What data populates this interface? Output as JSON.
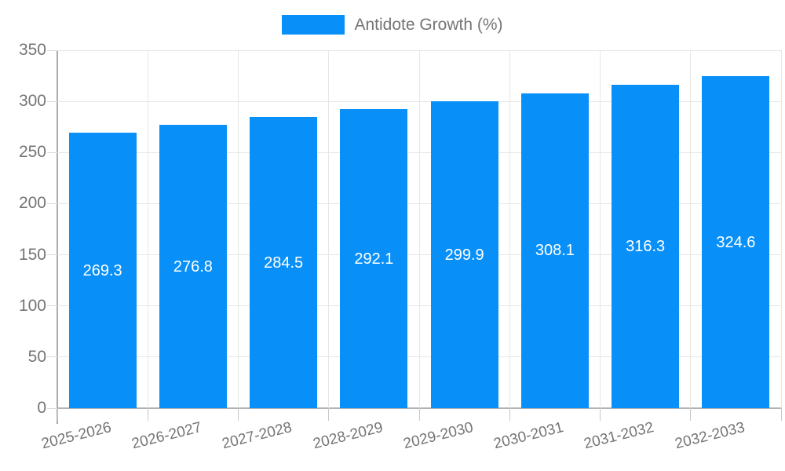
{
  "chart_data": {
    "type": "bar",
    "title": "",
    "legend": "Antidote Growth (%)",
    "legend_position": "top-center",
    "categories": [
      "2025-2026",
      "2026-2027",
      "2027-2028",
      "2028-2029",
      "2029-2030",
      "2030-2031",
      "2031-2032",
      "2032-2033"
    ],
    "values": [
      269.3,
      276.8,
      284.5,
      292.1,
      299.9,
      308.1,
      316.3,
      324.6
    ],
    "value_labels": [
      "269.3",
      "276.8",
      "284.5",
      "292.1",
      "299.9",
      "308.1",
      "316.3",
      "324.6"
    ],
    "ylim": [
      0,
      350
    ],
    "yticks": [
      0,
      50,
      100,
      150,
      200,
      250,
      300,
      350
    ],
    "grid": true,
    "colors": {
      "bar": "#0990f8",
      "axis_text": "#757575",
      "value_label_text": "#ffffff",
      "axis_line": "#b0b0b0",
      "gridline": "#e6e6e6",
      "background": "#ffffff"
    }
  }
}
